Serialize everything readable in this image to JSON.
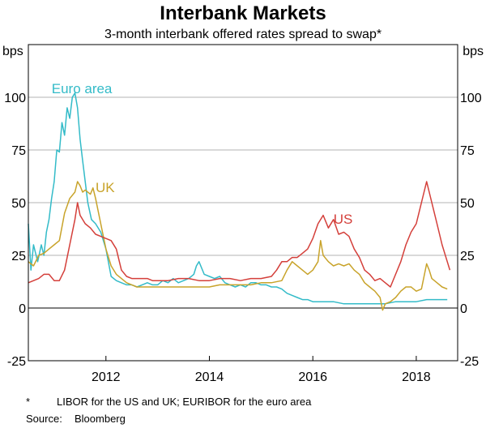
{
  "chart_data": {
    "type": "line",
    "title": "Interbank Markets",
    "subtitle": "3-month interbank offered rates spread to swap*",
    "ylabel_left": "bps",
    "ylabel_right": "bps",
    "ylim": [
      -25,
      125
    ],
    "yticks": [
      -25,
      0,
      25,
      50,
      75,
      100
    ],
    "xlim": [
      2010.5,
      2018.8
    ],
    "xticks": [
      {
        "value": 2012,
        "label": "2012"
      },
      {
        "value": 2014,
        "label": "2014"
      },
      {
        "value": 2016,
        "label": "2016"
      },
      {
        "value": 2018,
        "label": "2018"
      }
    ],
    "series": [
      {
        "name": "Euro area",
        "color": "#33bbc8",
        "points": [
          [
            2010.5,
            40
          ],
          [
            2010.55,
            18
          ],
          [
            2010.6,
            30
          ],
          [
            2010.68,
            22
          ],
          [
            2010.75,
            30
          ],
          [
            2010.8,
            25
          ],
          [
            2010.85,
            36
          ],
          [
            2010.9,
            42
          ],
          [
            2010.95,
            52
          ],
          [
            2011.0,
            60
          ],
          [
            2011.05,
            75
          ],
          [
            2011.1,
            74
          ],
          [
            2011.15,
            88
          ],
          [
            2011.2,
            82
          ],
          [
            2011.25,
            95
          ],
          [
            2011.3,
            90
          ],
          [
            2011.35,
            100
          ],
          [
            2011.4,
            102
          ],
          [
            2011.45,
            95
          ],
          [
            2011.5,
            80
          ],
          [
            2011.55,
            70
          ],
          [
            2011.6,
            60
          ],
          [
            2011.65,
            50
          ],
          [
            2011.72,
            42
          ],
          [
            2011.8,
            40
          ],
          [
            2011.9,
            36
          ],
          [
            2012.0,
            28
          ],
          [
            2012.1,
            15
          ],
          [
            2012.2,
            13
          ],
          [
            2012.3,
            12
          ],
          [
            2012.4,
            11
          ],
          [
            2012.5,
            11
          ],
          [
            2012.6,
            10
          ],
          [
            2012.7,
            11
          ],
          [
            2012.8,
            12
          ],
          [
            2012.9,
            11
          ],
          [
            2013.0,
            11
          ],
          [
            2013.1,
            13
          ],
          [
            2013.2,
            12
          ],
          [
            2013.3,
            14
          ],
          [
            2013.4,
            12
          ],
          [
            2013.5,
            13
          ],
          [
            2013.6,
            14
          ],
          [
            2013.7,
            16
          ],
          [
            2013.75,
            20
          ],
          [
            2013.8,
            22
          ],
          [
            2013.9,
            16
          ],
          [
            2014.0,
            15
          ],
          [
            2014.1,
            14
          ],
          [
            2014.2,
            15
          ],
          [
            2014.3,
            12
          ],
          [
            2014.4,
            11
          ],
          [
            2014.5,
            10
          ],
          [
            2014.6,
            11
          ],
          [
            2014.7,
            10
          ],
          [
            2014.8,
            12
          ],
          [
            2014.9,
            12
          ],
          [
            2015.0,
            11
          ],
          [
            2015.1,
            11
          ],
          [
            2015.2,
            10
          ],
          [
            2015.3,
            10
          ],
          [
            2015.4,
            9
          ],
          [
            2015.5,
            7
          ],
          [
            2015.6,
            6
          ],
          [
            2015.7,
            5
          ],
          [
            2015.8,
            4
          ],
          [
            2015.9,
            4
          ],
          [
            2016.0,
            3
          ],
          [
            2016.2,
            3
          ],
          [
            2016.4,
            3
          ],
          [
            2016.6,
            2
          ],
          [
            2016.8,
            2
          ],
          [
            2017.0,
            2
          ],
          [
            2017.2,
            2
          ],
          [
            2017.4,
            2
          ],
          [
            2017.6,
            3
          ],
          [
            2017.8,
            3
          ],
          [
            2018.0,
            3
          ],
          [
            2018.2,
            4
          ],
          [
            2018.4,
            4
          ],
          [
            2018.5,
            4
          ],
          [
            2018.6,
            4
          ]
        ]
      },
      {
        "name": "UK",
        "color": "#c8a32a",
        "points": [
          [
            2010.5,
            22
          ],
          [
            2010.6,
            20
          ],
          [
            2010.7,
            25
          ],
          [
            2010.8,
            26
          ],
          [
            2010.9,
            28
          ],
          [
            2011.0,
            30
          ],
          [
            2011.1,
            32
          ],
          [
            2011.2,
            45
          ],
          [
            2011.3,
            52
          ],
          [
            2011.4,
            55
          ],
          [
            2011.45,
            60
          ],
          [
            2011.5,
            58
          ],
          [
            2011.55,
            55
          ],
          [
            2011.6,
            56
          ],
          [
            2011.7,
            54
          ],
          [
            2011.75,
            57
          ],
          [
            2011.8,
            52
          ],
          [
            2011.9,
            40
          ],
          [
            2012.0,
            28
          ],
          [
            2012.1,
            20
          ],
          [
            2012.2,
            16
          ],
          [
            2012.3,
            14
          ],
          [
            2012.4,
            12
          ],
          [
            2012.5,
            11
          ],
          [
            2012.6,
            10
          ],
          [
            2012.7,
            10
          ],
          [
            2012.8,
            10
          ],
          [
            2012.9,
            10
          ],
          [
            2013.0,
            10
          ],
          [
            2013.2,
            10
          ],
          [
            2013.4,
            10
          ],
          [
            2013.6,
            10
          ],
          [
            2013.8,
            10
          ],
          [
            2014.0,
            10
          ],
          [
            2014.2,
            11
          ],
          [
            2014.4,
            11
          ],
          [
            2014.6,
            11
          ],
          [
            2014.8,
            11
          ],
          [
            2015.0,
            12
          ],
          [
            2015.2,
            12
          ],
          [
            2015.4,
            13
          ],
          [
            2015.5,
            18
          ],
          [
            2015.6,
            22
          ],
          [
            2015.7,
            20
          ],
          [
            2015.8,
            18
          ],
          [
            2015.9,
            16
          ],
          [
            2016.0,
            18
          ],
          [
            2016.1,
            22
          ],
          [
            2016.15,
            32
          ],
          [
            2016.2,
            25
          ],
          [
            2016.3,
            22
          ],
          [
            2016.4,
            20
          ],
          [
            2016.5,
            21
          ],
          [
            2016.6,
            20
          ],
          [
            2016.7,
            21
          ],
          [
            2016.8,
            18
          ],
          [
            2016.9,
            16
          ],
          [
            2017.0,
            12
          ],
          [
            2017.1,
            10
          ],
          [
            2017.2,
            8
          ],
          [
            2017.3,
            5
          ],
          [
            2017.35,
            -1
          ],
          [
            2017.4,
            2
          ],
          [
            2017.5,
            3
          ],
          [
            2017.6,
            5
          ],
          [
            2017.7,
            8
          ],
          [
            2017.8,
            10
          ],
          [
            2017.9,
            10
          ],
          [
            2018.0,
            8
          ],
          [
            2018.1,
            9
          ],
          [
            2018.15,
            15
          ],
          [
            2018.2,
            21
          ],
          [
            2018.25,
            18
          ],
          [
            2018.3,
            14
          ],
          [
            2018.4,
            12
          ],
          [
            2018.5,
            10
          ],
          [
            2018.6,
            9
          ]
        ]
      },
      {
        "name": "US",
        "color": "#d43f3a",
        "points": [
          [
            2010.5,
            12
          ],
          [
            2010.6,
            13
          ],
          [
            2010.7,
            14
          ],
          [
            2010.8,
            16
          ],
          [
            2010.9,
            16
          ],
          [
            2011.0,
            13
          ],
          [
            2011.1,
            13
          ],
          [
            2011.2,
            18
          ],
          [
            2011.3,
            30
          ],
          [
            2011.4,
            42
          ],
          [
            2011.45,
            50
          ],
          [
            2011.5,
            44
          ],
          [
            2011.6,
            40
          ],
          [
            2011.7,
            38
          ],
          [
            2011.8,
            35
          ],
          [
            2011.9,
            34
          ],
          [
            2012.0,
            33
          ],
          [
            2012.1,
            32
          ],
          [
            2012.2,
            28
          ],
          [
            2012.3,
            18
          ],
          [
            2012.4,
            15
          ],
          [
            2012.5,
            14
          ],
          [
            2012.6,
            14
          ],
          [
            2012.7,
            14
          ],
          [
            2012.8,
            14
          ],
          [
            2012.9,
            13
          ],
          [
            2013.0,
            13
          ],
          [
            2013.2,
            13
          ],
          [
            2013.4,
            14
          ],
          [
            2013.6,
            14
          ],
          [
            2013.8,
            13
          ],
          [
            2014.0,
            13
          ],
          [
            2014.2,
            14
          ],
          [
            2014.4,
            14
          ],
          [
            2014.6,
            13
          ],
          [
            2014.8,
            14
          ],
          [
            2015.0,
            14
          ],
          [
            2015.2,
            15
          ],
          [
            2015.3,
            18
          ],
          [
            2015.4,
            22
          ],
          [
            2015.5,
            22
          ],
          [
            2015.6,
            24
          ],
          [
            2015.7,
            24
          ],
          [
            2015.8,
            26
          ],
          [
            2015.9,
            28
          ],
          [
            2016.0,
            33
          ],
          [
            2016.1,
            40
          ],
          [
            2016.2,
            44
          ],
          [
            2016.3,
            38
          ],
          [
            2016.4,
            42
          ],
          [
            2016.5,
            35
          ],
          [
            2016.6,
            36
          ],
          [
            2016.7,
            34
          ],
          [
            2016.8,
            28
          ],
          [
            2016.9,
            24
          ],
          [
            2017.0,
            18
          ],
          [
            2017.1,
            16
          ],
          [
            2017.2,
            13
          ],
          [
            2017.3,
            14
          ],
          [
            2017.4,
            12
          ],
          [
            2017.5,
            10
          ],
          [
            2017.6,
            16
          ],
          [
            2017.7,
            22
          ],
          [
            2017.8,
            30
          ],
          [
            2017.9,
            36
          ],
          [
            2018.0,
            40
          ],
          [
            2018.1,
            50
          ],
          [
            2018.2,
            60
          ],
          [
            2018.3,
            50
          ],
          [
            2018.4,
            40
          ],
          [
            2018.5,
            30
          ],
          [
            2018.6,
            22
          ],
          [
            2018.65,
            18
          ]
        ]
      }
    ],
    "annotations": [
      {
        "text": "Euro area",
        "series": "Euro area",
        "at": [
          2010.95,
          102
        ]
      },
      {
        "text": "UK",
        "series": "UK",
        "at": [
          2011.8,
          55
        ]
      },
      {
        "text": "US",
        "series": "US",
        "at": [
          2016.4,
          40
        ]
      }
    ],
    "footnote_marker": "*",
    "footnote": "LIBOR for the US and UK; EURIBOR for the euro area",
    "source_label": "Source:",
    "source": "Bloomberg"
  }
}
